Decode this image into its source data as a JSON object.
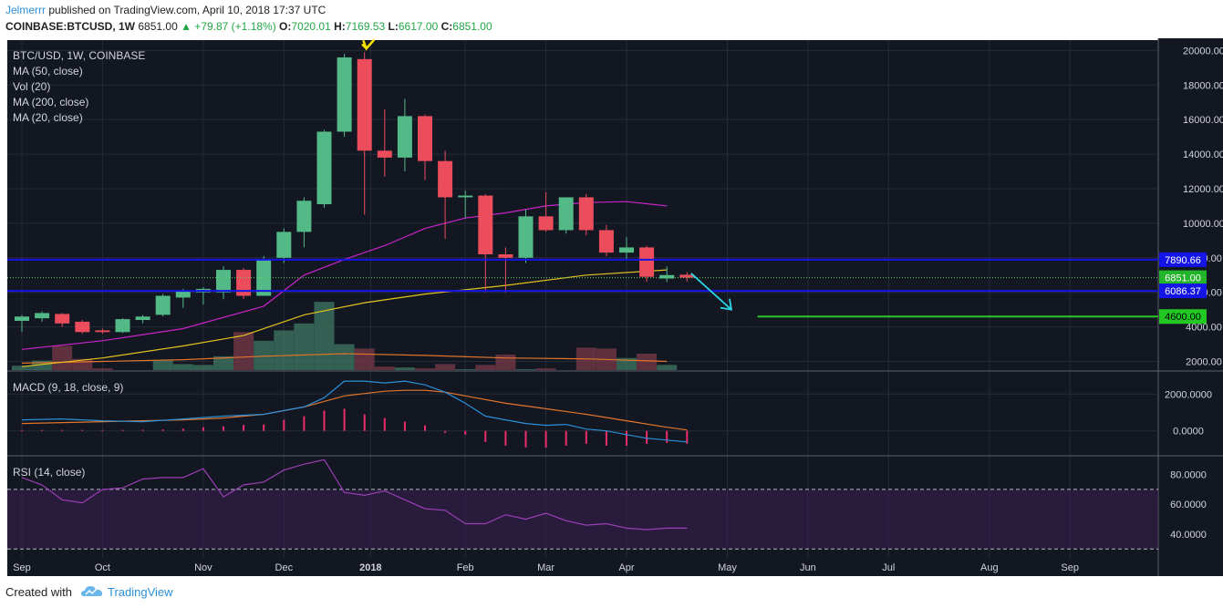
{
  "header": {
    "author": "Jelmerrr",
    "published": "published on TradingView.com, April 10, 2018 17:37 UTC",
    "symbol": "COINBASE:BTCUSD, 1W",
    "price": "6851.00",
    "change": "▲ +79.87 (+1.18%)",
    "o_label": "O:",
    "o_value": "7020.01",
    "h_label": "H:",
    "h_value": "7169.53",
    "l_label": "L:",
    "l_value": "6617.00",
    "c_label": "C:",
    "c_value": "6851.00"
  },
  "legend": {
    "main": "BTC/USD, 1W, COINBASE",
    "ma50": "MA (50, close)",
    "vol": "Vol (20)",
    "ma200": "MA (200, close)",
    "ma20": "MA (20, close)",
    "macd": "MACD (9, 18, close, 9)",
    "rsi": "RSI (14, close)"
  },
  "footer": {
    "created": "Created with",
    "brand": "TradingView"
  },
  "colors": {
    "bg": "#131722",
    "grid": "#262b38",
    "up": "#53b987",
    "down": "#eb4d5c",
    "ma50": "#c824c8",
    "ma200": "#e3c31f",
    "ma20": "#e0752b",
    "hline": "#1414e6",
    "target": "#28c828",
    "arrow": "#2ad6e6",
    "marker": "#f6e000",
    "macd": "#2a8fd6",
    "signal": "#e0752b",
    "hist": "#eb2e6b",
    "rsi": "#9b3fb5"
  },
  "chart_data": [
    {
      "type": "candlestick",
      "title": "BTC/USD, 1W, COINBASE",
      "x_ticks": [
        "Sep",
        "Oct",
        "Nov",
        "Dec",
        "2018",
        "Feb",
        "Mar",
        "Apr",
        "May",
        "Jun",
        "Jul",
        "Aug",
        "Sep"
      ],
      "x_tick_weeks": [
        0,
        4,
        9,
        13,
        17.3,
        22,
        26,
        30,
        35,
        39,
        43,
        48,
        52
      ],
      "y_ticks": [
        2000,
        4000,
        6000,
        8000,
        10000,
        12000,
        14000,
        16000,
        18000,
        20000
      ],
      "y_range": [
        1500,
        20600
      ],
      "candles": [
        {
          "o": 4350,
          "h": 4700,
          "l": 3700,
          "c": 4600
        },
        {
          "o": 4500,
          "h": 4900,
          "l": 4300,
          "c": 4800
        },
        {
          "o": 4750,
          "h": 4800,
          "l": 4000,
          "c": 4200
        },
        {
          "o": 4300,
          "h": 4400,
          "l": 3600,
          "c": 3700
        },
        {
          "o": 3800,
          "h": 3900,
          "l": 3600,
          "c": 3700
        },
        {
          "o": 3700,
          "h": 4500,
          "l": 3650,
          "c": 4450
        },
        {
          "o": 4400,
          "h": 4700,
          "l": 4200,
          "c": 4600
        },
        {
          "o": 4700,
          "h": 5900,
          "l": 4600,
          "c": 5800
        },
        {
          "o": 5700,
          "h": 6200,
          "l": 5100,
          "c": 6100
        },
        {
          "o": 6000,
          "h": 6300,
          "l": 5300,
          "c": 6200
        },
        {
          "o": 6000,
          "h": 7500,
          "l": 5600,
          "c": 7300
        },
        {
          "o": 7300,
          "h": 7400,
          "l": 5600,
          "c": 5800
        },
        {
          "o": 5800,
          "h": 8100,
          "l": 5800,
          "c": 7900
        },
        {
          "o": 8000,
          "h": 9700,
          "l": 7700,
          "c": 9500
        },
        {
          "o": 9500,
          "h": 11500,
          "l": 8600,
          "c": 11300
        },
        {
          "o": 11100,
          "h": 15400,
          "l": 10900,
          "c": 15300
        },
        {
          "o": 15300,
          "h": 19800,
          "l": 15000,
          "c": 19600
        },
        {
          "o": 19500,
          "h": 19900,
          "l": 10500,
          "c": 14200
        },
        {
          "o": 14200,
          "h": 16600,
          "l": 12700,
          "c": 13800
        },
        {
          "o": 13800,
          "h": 17200,
          "l": 13000,
          "c": 16200
        },
        {
          "o": 16200,
          "h": 16300,
          "l": 12500,
          "c": 13600
        },
        {
          "o": 13600,
          "h": 14200,
          "l": 9100,
          "c": 11500
        },
        {
          "o": 11500,
          "h": 11900,
          "l": 10300,
          "c": 11600
        },
        {
          "o": 11600,
          "h": 11700,
          "l": 6000,
          "c": 8200
        },
        {
          "o": 8200,
          "h": 8600,
          "l": 6000,
          "c": 8000
        },
        {
          "o": 8000,
          "h": 10800,
          "l": 7700,
          "c": 10400
        },
        {
          "o": 10400,
          "h": 11800,
          "l": 9500,
          "c": 9600
        },
        {
          "o": 9600,
          "h": 11500,
          "l": 9400,
          "c": 11500
        },
        {
          "o": 11500,
          "h": 11700,
          "l": 9300,
          "c": 9600
        },
        {
          "o": 9600,
          "h": 9900,
          "l": 8100,
          "c": 8300
        },
        {
          "o": 8300,
          "h": 9200,
          "l": 7900,
          "c": 8600
        },
        {
          "o": 8600,
          "h": 8700,
          "l": 6600,
          "c": 6900
        },
        {
          "o": 6800,
          "h": 7500,
          "l": 6600,
          "c": 7000
        },
        {
          "o": 7020.01,
          "h": 7169.53,
          "l": 6617,
          "c": 6851
        }
      ],
      "ma50": [
        [
          0,
          2700
        ],
        [
          4,
          3200
        ],
        [
          8,
          3900
        ],
        [
          12,
          5200
        ],
        [
          14,
          7000
        ],
        [
          16,
          7900
        ],
        [
          18,
          8700
        ],
        [
          20,
          9700
        ],
        [
          22,
          10300
        ],
        [
          24,
          10600
        ],
        [
          26,
          11000
        ],
        [
          28,
          11200
        ],
        [
          30,
          11250
        ],
        [
          32,
          11000
        ]
      ],
      "ma200": [
        [
          0,
          1700
        ],
        [
          4,
          2200
        ],
        [
          8,
          2900
        ],
        [
          11,
          3500
        ],
        [
          14,
          4700
        ],
        [
          17,
          5400
        ],
        [
          20,
          5900
        ],
        [
          24,
          6400
        ],
        [
          28,
          7000
        ],
        [
          32,
          7300
        ]
      ],
      "ma20_volume": [
        [
          0,
          1900
        ],
        [
          4,
          2000
        ],
        [
          8,
          2100
        ],
        [
          12,
          2300
        ],
        [
          16,
          2450
        ],
        [
          20,
          2350
        ],
        [
          24,
          2200
        ],
        [
          28,
          2150
        ],
        [
          32,
          2000
        ]
      ],
      "volume": [
        1750,
        2050,
        2900,
        2150,
        1600,
        1450,
        1450,
        2050,
        1850,
        1800,
        2300,
        3700,
        3200,
        3800,
        4200,
        5450,
        3000,
        2750,
        1700,
        1650,
        1600,
        1850,
        1550,
        1800,
        2400,
        1550,
        1600,
        1450,
        2800,
        2750,
        2200,
        2450,
        1800,
        1250
      ],
      "levels": [
        {
          "label": "7890.66",
          "value": 7890.66
        },
        {
          "label": "6086.37",
          "value": 6086.37
        }
      ],
      "target": {
        "label": "4600.00",
        "value": 4600,
        "from_week": 36.5
      },
      "current": {
        "label": "6851.00",
        "value": 6851
      },
      "arrow": {
        "from": [
          33.2,
          7100
        ],
        "to": [
          35.2,
          5000
        ]
      },
      "price_labels": [
        "7890.66",
        "6851.00",
        "6086.37",
        "4600.00"
      ]
    },
    {
      "type": "line",
      "title": "MACD (9, 18, close, 9)",
      "y_ticks": [
        "2000.0000",
        "0.0000"
      ],
      "y_tick_values": [
        2000,
        0
      ],
      "y_range": [
        -1300,
        3200
      ],
      "macd": [
        [
          0,
          600
        ],
        [
          2,
          650
        ],
        [
          4,
          550
        ],
        [
          6,
          500
        ],
        [
          8,
          650
        ],
        [
          10,
          800
        ],
        [
          12,
          900
        ],
        [
          14,
          1300
        ],
        [
          15,
          1800
        ],
        [
          16,
          2700
        ],
        [
          17,
          2700
        ],
        [
          18,
          2600
        ],
        [
          19,
          2700
        ],
        [
          20,
          2500
        ],
        [
          21,
          2100
        ],
        [
          22,
          1500
        ],
        [
          23,
          800
        ],
        [
          24,
          600
        ],
        [
          25,
          400
        ],
        [
          26,
          300
        ],
        [
          27,
          350
        ],
        [
          28,
          100
        ],
        [
          29,
          0
        ],
        [
          30,
          -200
        ],
        [
          31,
          -400
        ],
        [
          32,
          -500
        ],
        [
          33,
          -600
        ]
      ],
      "signal": [
        [
          0,
          400
        ],
        [
          4,
          500
        ],
        [
          8,
          600
        ],
        [
          10,
          700
        ],
        [
          12,
          900
        ],
        [
          14,
          1300
        ],
        [
          16,
          1900
        ],
        [
          18,
          2150
        ],
        [
          19,
          2200
        ],
        [
          20,
          2200
        ],
        [
          21,
          2100
        ],
        [
          22,
          1900
        ],
        [
          24,
          1500
        ],
        [
          26,
          1200
        ],
        [
          28,
          900
        ],
        [
          30,
          550
        ],
        [
          32,
          200
        ],
        [
          33,
          50
        ]
      ],
      "hist": [
        50,
        50,
        50,
        50,
        50,
        50,
        60,
        80,
        120,
        200,
        250,
        320,
        350,
        600,
        800,
        1100,
        1200,
        900,
        700,
        500,
        300,
        -100,
        -200,
        -600,
        -800,
        -900,
        -900,
        -800,
        -700,
        -800,
        -800,
        -700,
        -650,
        -700
      ]
    },
    {
      "type": "line",
      "title": "RSI (14, close)",
      "y_ticks": [
        "80.0000",
        "60.0000",
        "40.0000"
      ],
      "y_tick_values": [
        80,
        60,
        40
      ],
      "y_range": [
        24,
        92
      ],
      "bands": [
        70,
        30
      ],
      "values": [
        [
          0,
          78
        ],
        [
          1,
          73
        ],
        [
          2,
          63
        ],
        [
          3,
          61
        ],
        [
          4,
          70
        ],
        [
          5,
          71
        ],
        [
          6,
          77
        ],
        [
          7,
          78
        ],
        [
          8,
          78
        ],
        [
          9,
          84
        ],
        [
          10,
          65
        ],
        [
          11,
          73
        ],
        [
          12,
          75
        ],
        [
          13,
          83
        ],
        [
          14,
          87
        ],
        [
          15,
          90
        ],
        [
          16,
          68
        ],
        [
          17,
          66
        ],
        [
          18,
          69
        ],
        [
          19,
          63
        ],
        [
          20,
          57
        ],
        [
          21,
          56
        ],
        [
          22,
          47
        ],
        [
          23,
          47
        ],
        [
          24,
          53
        ],
        [
          25,
          50
        ],
        [
          26,
          54
        ],
        [
          27,
          49
        ],
        [
          28,
          46
        ],
        [
          29,
          47
        ],
        [
          30,
          44
        ],
        [
          31,
          43
        ],
        [
          32,
          44
        ],
        [
          33,
          44
        ]
      ]
    }
  ]
}
